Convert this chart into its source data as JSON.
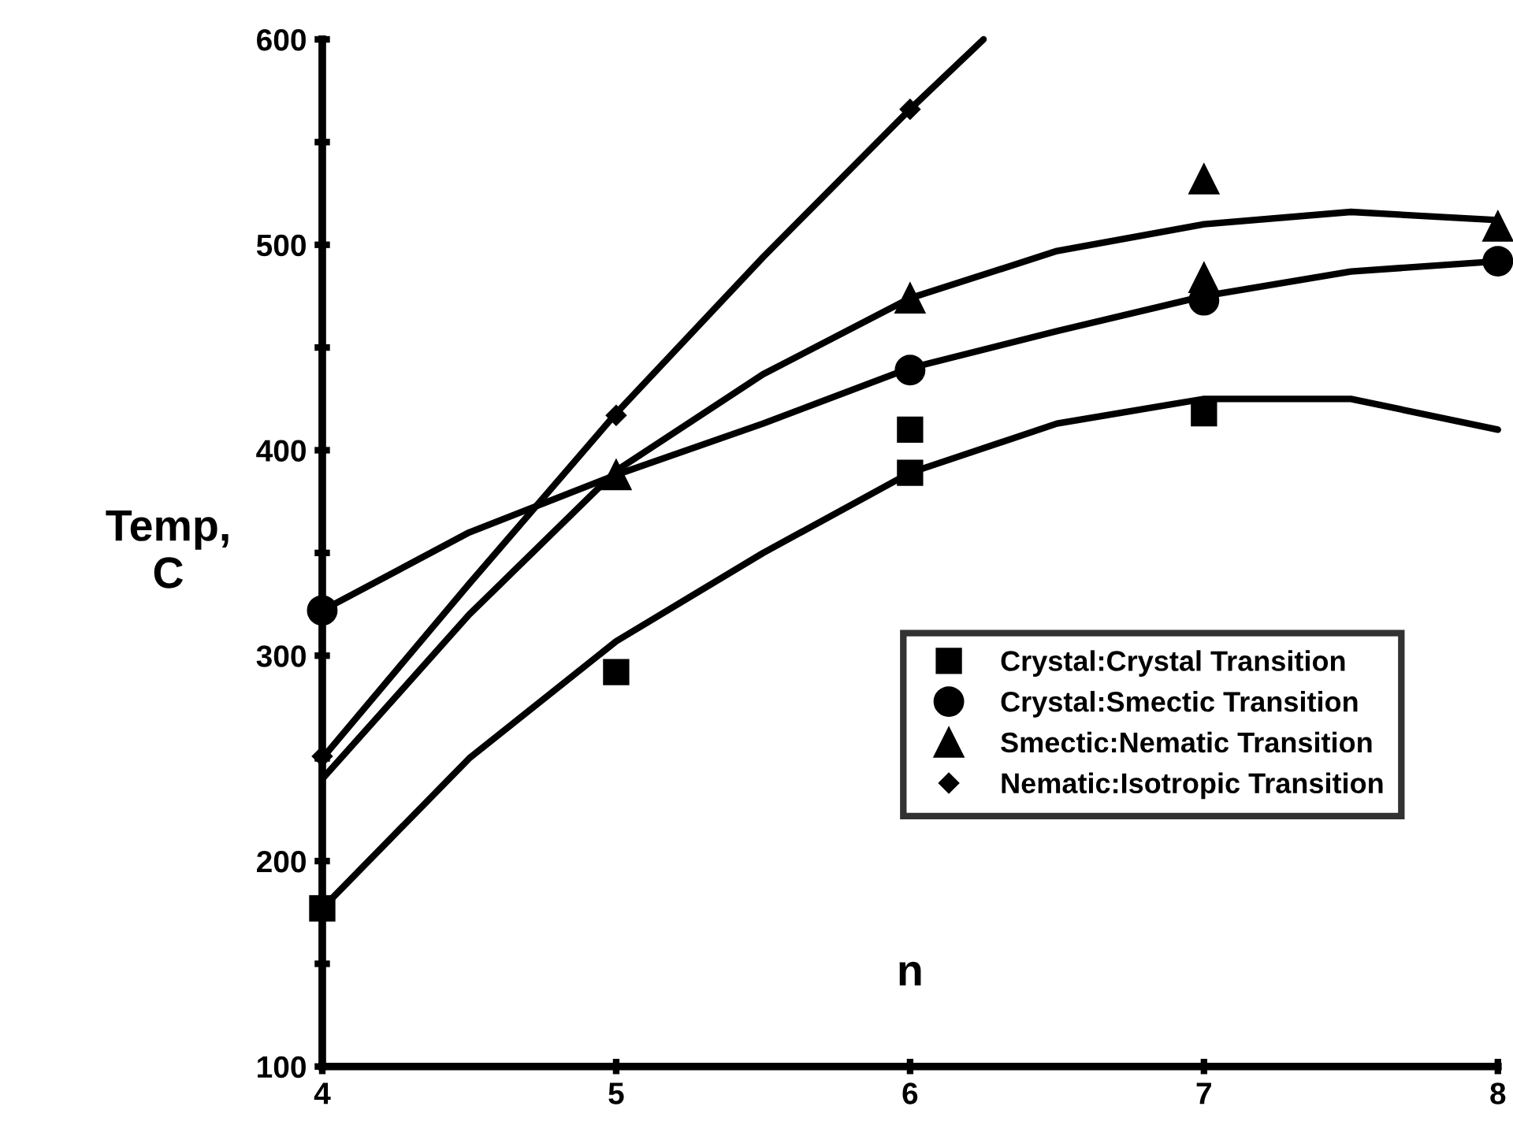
{
  "chart_data": {
    "type": "scatter",
    "xlabel": "n",
    "ylabel": "Temp,\nC",
    "xlim": [
      4,
      8
    ],
    "ylim": [
      100,
      600
    ],
    "xticks": [
      4,
      5,
      6,
      7,
      8
    ],
    "yticks": [
      100,
      {
        "value": 150,
        "label": null
      },
      200,
      {
        "value": 250,
        "label": null
      },
      300,
      {
        "value": 350,
        "label": null
      },
      400,
      {
        "value": 450,
        "label": null
      },
      500,
      {
        "value": 550,
        "label": null
      },
      600
    ],
    "grid": false,
    "legend": "lower right",
    "series": [
      {
        "name": "Crystal:Crystal Transition",
        "color": "#000000",
        "marker": "square",
        "x": [
          4,
          5,
          6,
          6,
          7
        ],
        "values": [
          177,
          292,
          410,
          389,
          418
        ]
      },
      {
        "name": "Crystal:Smectic Transition",
        "color": "#000000",
        "marker": "circle",
        "x": [
          4,
          5,
          6,
          7,
          8
        ],
        "values": [
          322,
          null,
          439,
          473,
          492
        ]
      },
      {
        "name": "Smectic:Nematic Transition",
        "color": "#000000",
        "marker": "triangle",
        "x": [
          5,
          6,
          7,
          7,
          8
        ],
        "values": [
          388,
          474,
          532,
          484,
          509
        ]
      },
      {
        "name": "Nematic:Isotropic Transition",
        "color": "#000000",
        "marker": "diamond",
        "x": [
          4,
          5,
          6
        ],
        "values": [
          251,
          417,
          566
        ]
      },
      {
        "type": "line",
        "color": "#000000",
        "marker": "none",
        "x": [
          4,
          4.5,
          5,
          5.5,
          6,
          6.5,
          7,
          7.5,
          8
        ],
        "values": [
          177,
          250,
          307,
          350,
          389,
          413,
          425,
          425,
          410
        ]
      },
      {
        "type": "line",
        "color": "#000000",
        "marker": "none",
        "x": [
          4,
          4.5,
          5,
          5.5,
          6,
          6.5,
          7,
          7.5,
          8
        ],
        "values": [
          322,
          360,
          388,
          413,
          440,
          458,
          475,
          487,
          492
        ]
      },
      {
        "type": "line",
        "color": "#000000",
        "marker": "none",
        "x": [
          4,
          4.5,
          5,
          5.5,
          6,
          6.5,
          7,
          7.5,
          8
        ],
        "values": [
          240,
          320,
          390,
          437,
          474,
          497,
          510,
          516,
          512
        ]
      },
      {
        "type": "line",
        "color": "#000000",
        "marker": "none",
        "x": [
          4,
          4.5,
          5,
          5.5,
          6,
          6.25
        ],
        "values": [
          250,
          335,
          418,
          494,
          566,
          600
        ]
      }
    ]
  }
}
